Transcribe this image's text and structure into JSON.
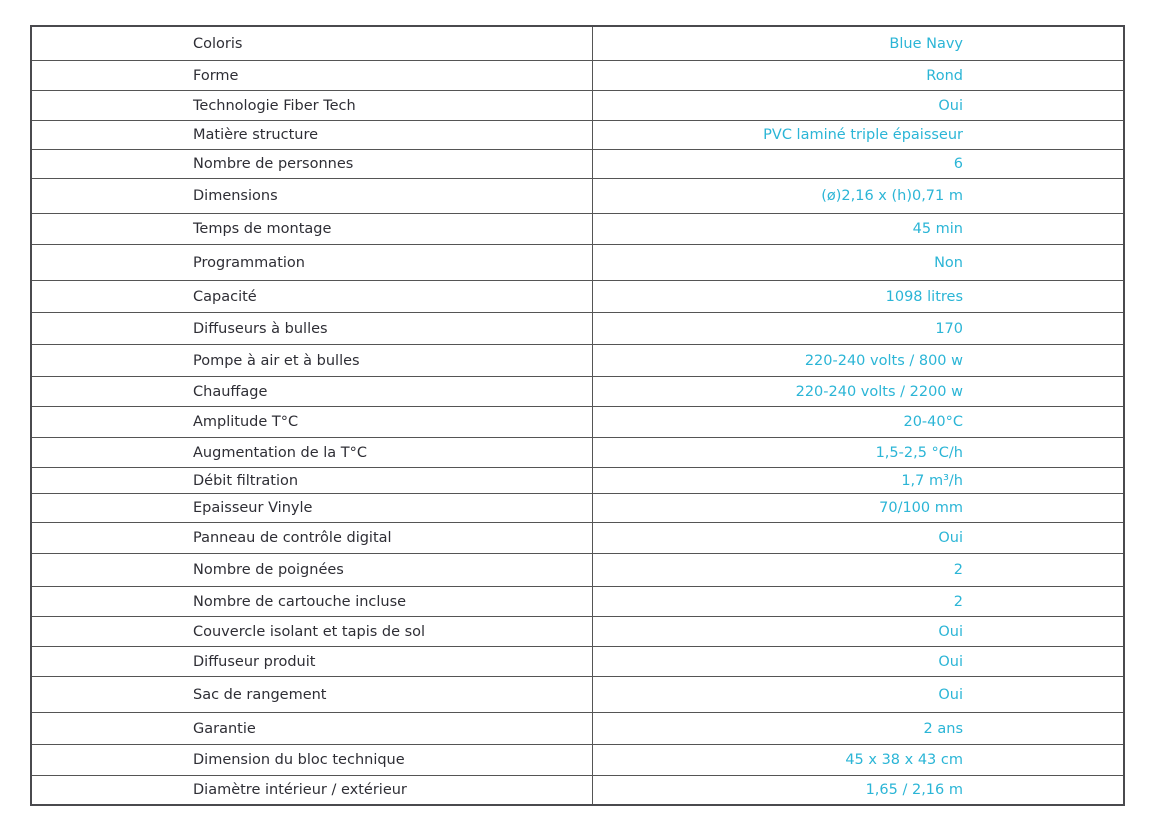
{
  "table": {
    "accent_color": "#2bb5d6",
    "rows": [
      {
        "label": "Coloris",
        "value": "Blue Navy"
      },
      {
        "label": "Forme",
        "value": "Rond"
      },
      {
        "label": "Technologie Fiber Tech",
        "value": "Oui"
      },
      {
        "label": "Matière structure",
        "value": "PVC laminé triple épaisseur"
      },
      {
        "label": "Nombre de personnes",
        "value": "6"
      },
      {
        "label": "Dimensions",
        "value": "(ø)2,16 x (h)0,71 m"
      },
      {
        "label": "Temps de montage",
        "value": "45 min"
      },
      {
        "label": "Programmation",
        "value": "Non"
      },
      {
        "label": "Capacité",
        "value": "1098 litres"
      },
      {
        "label": "Diffuseurs à bulles",
        "value": "170"
      },
      {
        "label": "Pompe à air et à bulles",
        "value": "220-240 volts / 800 w"
      },
      {
        "label": "Chauffage",
        "value": "220-240 volts / 2200 w"
      },
      {
        "label": "Amplitude T°C",
        "value": "20-40°C"
      },
      {
        "label": "Augmentation de la T°C",
        "value": "1,5-2,5 °C/h"
      },
      {
        "label": "Débit filtration",
        "value": "1,7 m³/h"
      },
      {
        "label": "Epaisseur Vinyle",
        "value": "70/100 mm"
      },
      {
        "label": "Panneau de contrôle digital",
        "value": "Oui"
      },
      {
        "label": "Nombre de poignées",
        "value": "2"
      },
      {
        "label": "Nombre de cartouche incluse",
        "value": "2"
      },
      {
        "label": "Couvercle isolant et tapis de sol",
        "value": "Oui"
      },
      {
        "label": "Diffuseur produit",
        "value": "Oui"
      },
      {
        "label": "Sac de rangement",
        "value": "Oui"
      },
      {
        "label": "Garantie",
        "value": "2 ans"
      },
      {
        "label": "Dimension du bloc technique",
        "value": "45 x 38 x 43 cm"
      },
      {
        "label": "Diamètre intérieur / extérieur",
        "value": "1,65 / 2,16 m"
      }
    ]
  }
}
